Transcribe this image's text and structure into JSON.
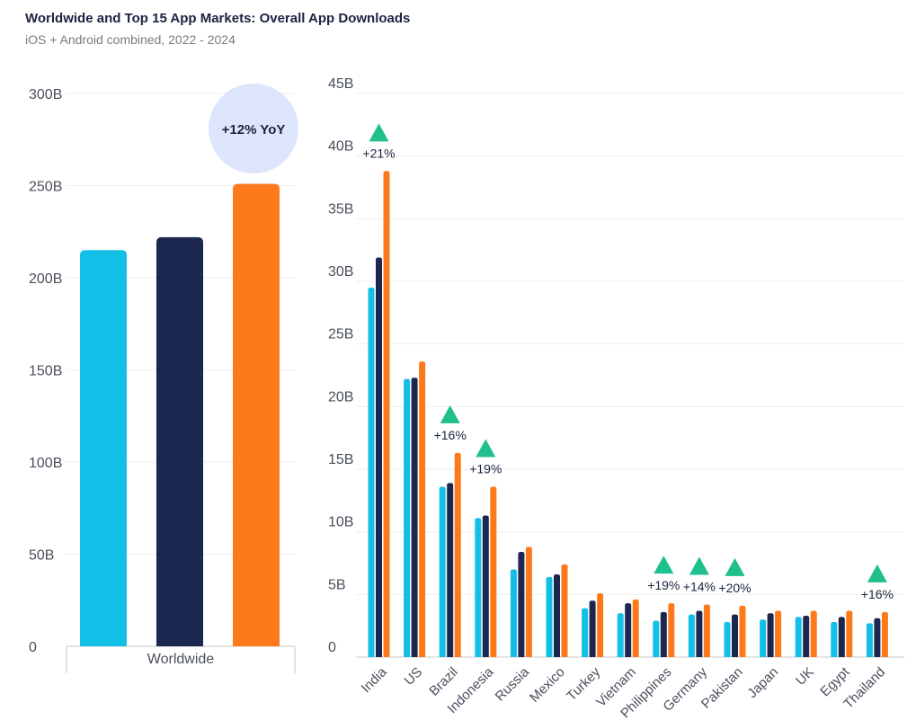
{
  "title": "Worldwide and Top 15 App Markets: Overall App Downloads",
  "subtitle": "iOS + Android combined, 2022 - 2024",
  "colors": {
    "2022": "#13bfe6",
    "2023": "#1c2751",
    "2024": "#fd7a1c",
    "up_arrow": "#1fc08e",
    "bubble": "#dde5fb",
    "grid": "#eeeeee",
    "axis": "#c8c8c8"
  },
  "chart_data": [
    {
      "type": "bar",
      "categories": [
        "Worldwide"
      ],
      "series": [
        {
          "values": [
            215
          ]
        },
        {
          "values": [
            222
          ]
        },
        {
          "values": [
            251
          ]
        }
      ],
      "ylim": [
        0,
        300
      ],
      "y_ticks": [
        "0",
        "50B",
        "100B",
        "150B",
        "200B",
        "250B",
        "300B"
      ],
      "annotation": "+12% YoY"
    },
    {
      "type": "bar",
      "categories": [
        "India",
        "US",
        "Brazil",
        "Indonesia",
        "Russia",
        "Mexico",
        "Turkey",
        "Vietnam",
        "Philippines",
        "Germany",
        "Pakistan",
        "Japan",
        "UK",
        "Egypt",
        "Thailand"
      ],
      "series": [
        {
          "values": [
            29.5,
            22.2,
            13.6,
            11.1,
            7.0,
            6.4,
            3.9,
            3.5,
            2.9,
            3.4,
            2.8,
            3.0,
            3.2,
            2.8,
            2.7
          ]
        },
        {
          "values": [
            31.9,
            22.3,
            13.9,
            11.3,
            8.4,
            6.6,
            4.5,
            4.3,
            3.6,
            3.7,
            3.4,
            3.5,
            3.3,
            3.2,
            3.1
          ]
        },
        {
          "values": [
            38.8,
            23.6,
            16.3,
            13.6,
            8.8,
            7.4,
            5.1,
            4.6,
            4.3,
            4.2,
            4.1,
            3.7,
            3.7,
            3.7,
            3.6
          ]
        }
      ],
      "ylim": [
        0,
        45
      ],
      "y_ticks": [
        "0",
        "5B",
        "10B",
        "15B",
        "20B",
        "25B",
        "30B",
        "35B",
        "40B",
        "45B"
      ],
      "growth_labels": [
        {
          "category": "India",
          "label": "+21%"
        },
        {
          "category": "Brazil",
          "label": "+16%"
        },
        {
          "category": "Indonesia",
          "label": "+19%"
        },
        {
          "category": "Philippines",
          "label": "+19%"
        },
        {
          "category": "Germany",
          "label": "+14%"
        },
        {
          "category": "Pakistan",
          "label": "+20%"
        },
        {
          "category": "Thailand",
          "label": "+16%"
        }
      ]
    }
  ]
}
